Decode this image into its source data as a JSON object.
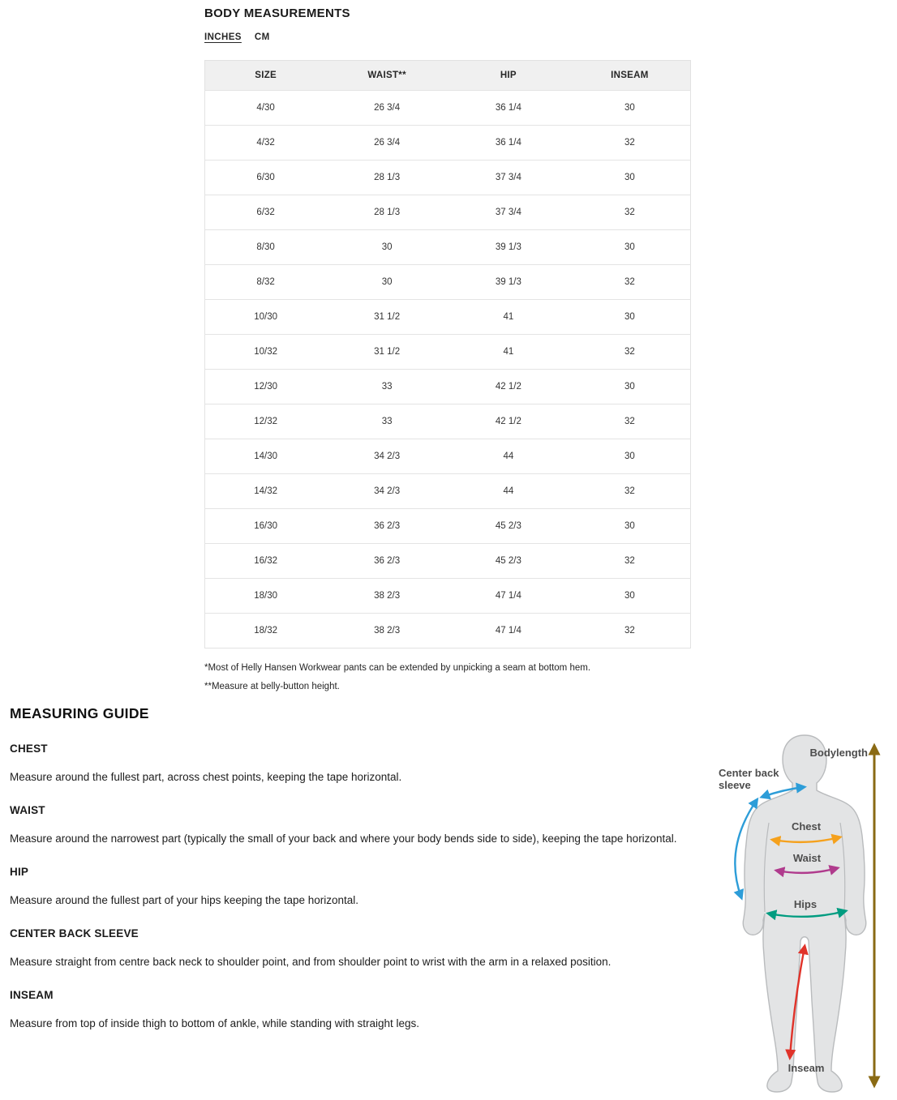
{
  "page": {
    "title": "BODY MEASUREMENTS",
    "units": [
      {
        "label": "INCHES",
        "active": true
      },
      {
        "label": "CM",
        "active": false
      }
    ]
  },
  "table": {
    "headers": [
      "SIZE",
      "WAIST**",
      "HIP",
      "INSEAM"
    ],
    "rows": [
      [
        "4/30",
        "26 3/4",
        "36 1/4",
        "30"
      ],
      [
        "4/32",
        "26 3/4",
        "36 1/4",
        "32"
      ],
      [
        "6/30",
        "28 1/3",
        "37 3/4",
        "30"
      ],
      [
        "6/32",
        "28 1/3",
        "37 3/4",
        "32"
      ],
      [
        "8/30",
        "30",
        "39 1/3",
        "30"
      ],
      [
        "8/32",
        "30",
        "39 1/3",
        "32"
      ],
      [
        "10/30",
        "31 1/2",
        "41",
        "30"
      ],
      [
        "10/32",
        "31 1/2",
        "41",
        "32"
      ],
      [
        "12/30",
        "33",
        "42 1/2",
        "30"
      ],
      [
        "12/32",
        "33",
        "42 1/2",
        "32"
      ],
      [
        "14/30",
        "34 2/3",
        "44",
        "30"
      ],
      [
        "14/32",
        "34 2/3",
        "44",
        "32"
      ],
      [
        "16/30",
        "36 2/3",
        "45 2/3",
        "30"
      ],
      [
        "16/32",
        "36 2/3",
        "45 2/3",
        "32"
      ],
      [
        "18/30",
        "38 2/3",
        "47 1/4",
        "30"
      ],
      [
        "18/32",
        "38 2/3",
        "47 1/4",
        "32"
      ]
    ]
  },
  "footnotes": [
    "*Most of Helly Hansen Workwear pants can be extended by unpicking a seam at bottom hem.",
    "**Measure at belly-button height."
  ],
  "guide": {
    "title": "MEASURING GUIDE",
    "sections": [
      {
        "heading": "CHEST",
        "text": "Measure around the fullest part, across chest points, keeping the tape horizontal."
      },
      {
        "heading": "WAIST",
        "text": "Measure around the narrowest part (typically the small of your back and where your body bends side to side), keeping the tape horizontal."
      },
      {
        "heading": "HIP",
        "text": "Measure around the fullest part of your hips keeping the tape horizontal."
      },
      {
        "heading": "CENTER BACK SLEEVE",
        "text": "Measure straight from centre back neck to shoulder point, and from shoulder point to wrist with the arm in a relaxed position."
      },
      {
        "heading": "INSEAM",
        "text": "Measure from top of inside thigh to bottom of ankle, while standing with straight legs."
      }
    ]
  },
  "diagram": {
    "labels": {
      "bodylength": "Bodylength",
      "center_back_sleeve": "Center back sleeve",
      "chest": "Chest",
      "waist": "Waist",
      "hips": "Hips",
      "inseam": "Inseam"
    },
    "colors": {
      "bodylength": "#8a6a14",
      "sleeve": "#2d9dd8",
      "chest": "#f5a11d",
      "waist": "#b03b8d",
      "hips": "#009c80",
      "inseam": "#e0332a",
      "body_fill": "#e3e4e5",
      "body_stroke": "#b9bbbd"
    }
  }
}
